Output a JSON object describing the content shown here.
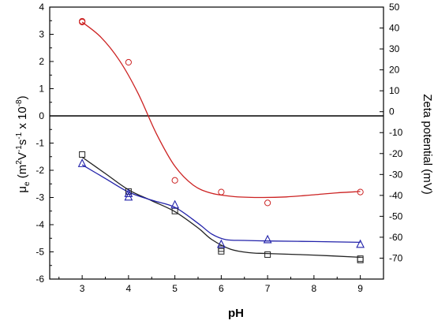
{
  "chart_data": {
    "type": "scatter",
    "xlabel": "pH",
    "ylabel_left": {
      "main": "μ",
      "sub": "e",
      "rest": " (m",
      "sup1": "2",
      "mid1": "V",
      "sup2": "-1",
      "mid2": "s",
      "sup3": "-1",
      "mid3": " x 10",
      "sup4": "-8",
      "end": ")"
    },
    "ylabel_right": "Zeta potential (mV)",
    "xlim": [
      2.3,
      9.5
    ],
    "ylim_left": [
      -6,
      4
    ],
    "ylim_right": [
      -80,
      50
    ],
    "x_ticks": [
      3,
      4,
      5,
      6,
      7,
      8,
      9
    ],
    "y_ticks_left": [
      4,
      3,
      2,
      1,
      0,
      -1,
      -2,
      -3,
      -4,
      -5,
      -6
    ],
    "y_ticks_right": [
      50,
      40,
      30,
      20,
      10,
      0,
      -10,
      -20,
      -30,
      -40,
      -50,
      -60,
      -70
    ],
    "series": [
      {
        "color": "#cc2222",
        "marker": "circle",
        "points": [
          [
            3,
            3.48
          ],
          [
            3,
            3.45
          ],
          [
            4,
            1.97
          ],
          [
            5,
            -2.37
          ],
          [
            6,
            -2.8
          ],
          [
            7,
            -3.2
          ],
          [
            9,
            -2.8
          ]
        ],
        "curve": [
          [
            3,
            3.45
          ],
          [
            3.4,
            2.9
          ],
          [
            3.8,
            2.05
          ],
          [
            4.2,
            0.85
          ],
          [
            4.6,
            -0.65
          ],
          [
            5.0,
            -1.85
          ],
          [
            5.4,
            -2.55
          ],
          [
            5.8,
            -2.85
          ],
          [
            6.3,
            -2.97
          ],
          [
            6.8,
            -3.0
          ],
          [
            7.4,
            -2.98
          ],
          [
            8.0,
            -2.9
          ],
          [
            8.5,
            -2.83
          ],
          [
            9,
            -2.78
          ]
        ]
      },
      {
        "color": "#222222",
        "marker": "square",
        "points": [
          [
            3,
            -1.42
          ],
          [
            4,
            -2.78
          ],
          [
            5,
            -3.5
          ],
          [
            6,
            -4.88
          ],
          [
            6,
            -4.98
          ],
          [
            7,
            -5.1
          ],
          [
            9,
            -5.25
          ],
          [
            9,
            -5.3
          ]
        ],
        "curve": [
          [
            3,
            -1.52
          ],
          [
            3.5,
            -2.12
          ],
          [
            4,
            -2.72
          ],
          [
            4.5,
            -3.12
          ],
          [
            5,
            -3.52
          ],
          [
            5.5,
            -4.12
          ],
          [
            5.8,
            -4.55
          ],
          [
            6.2,
            -4.9
          ],
          [
            6.6,
            -5.03
          ],
          [
            7,
            -5.06
          ],
          [
            8,
            -5.12
          ],
          [
            9,
            -5.2
          ]
        ]
      },
      {
        "color": "#2222aa",
        "marker": "triangle",
        "points": [
          [
            3,
            -1.75
          ],
          [
            4,
            -2.98
          ],
          [
            4,
            -2.85
          ],
          [
            5,
            -3.27
          ],
          [
            6,
            -4.72
          ],
          [
            7,
            -4.55
          ],
          [
            9,
            -4.72
          ]
        ],
        "curve": [
          [
            3,
            -1.8
          ],
          [
            3.5,
            -2.3
          ],
          [
            4,
            -2.8
          ],
          [
            4.5,
            -3.1
          ],
          [
            5,
            -3.36
          ],
          [
            5.5,
            -3.95
          ],
          [
            5.8,
            -4.35
          ],
          [
            6.1,
            -4.55
          ],
          [
            6.5,
            -4.58
          ],
          [
            7,
            -4.6
          ],
          [
            8,
            -4.62
          ],
          [
            9,
            -4.65
          ]
        ]
      }
    ],
    "zero_line": 0
  }
}
